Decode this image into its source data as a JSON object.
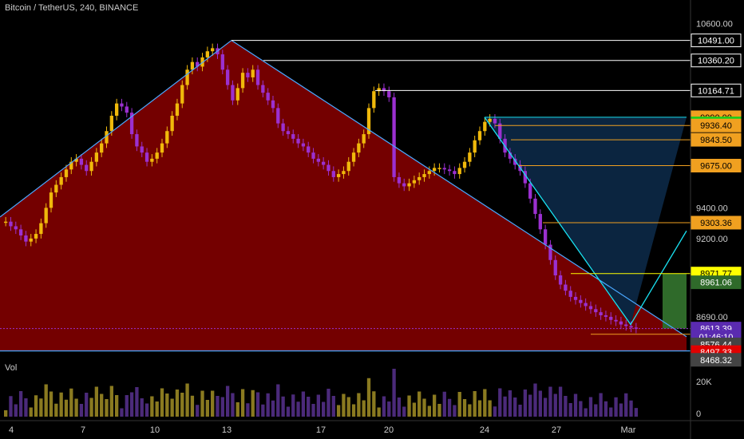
{
  "header": {
    "symbol_title": "Bitcoin / TetherUS, 240, BINANCE"
  },
  "volume_pane": {
    "label": "Vol",
    "ticks": [
      "20K",
      "0"
    ]
  },
  "colors": {
    "background": "#000000",
    "pattern_fill": "#7a0000",
    "triangle_fill": "#0b2540",
    "trendline": "#4aa8ff",
    "cyan_line": "#19e0f0",
    "candle_up": "#f0b90b",
    "candle_down": "#9b30d0",
    "volume_up": "#8a7a20",
    "volume_down": "#4b2a7a",
    "target_box": "#2f6a2a"
  },
  "chart_data": {
    "type": "candlestick",
    "y_axis_ticks": [
      10600.0,
      9400.0,
      9200.0,
      8690.0
    ],
    "x_axis_ticks": [
      "4",
      "7",
      "10",
      "13",
      "17",
      "20",
      "24",
      "27",
      "Mar"
    ],
    "price_labels": [
      {
        "value": "10491.00",
        "style": "white"
      },
      {
        "value": "10360.20",
        "style": "white"
      },
      {
        "value": "10164.71",
        "style": "white"
      },
      {
        "value": "9990.00",
        "style": "orange"
      },
      {
        "value": "9949.89",
        "style": "green"
      },
      {
        "value": "9936.40",
        "style": "orange"
      },
      {
        "value": "9843.50",
        "style": "orange"
      },
      {
        "value": "9675.00",
        "style": "orange"
      },
      {
        "value": "9303.36",
        "style": "orange"
      },
      {
        "value": "8971.77",
        "style": "yellow"
      },
      {
        "value": "8961.06",
        "style": "greenbox"
      },
      {
        "value": "8613.39",
        "style": "purple"
      },
      {
        "value": "01:46:10",
        "style": "purple"
      },
      {
        "value": "8576.44",
        "style": "gray"
      },
      {
        "value": "8497.33",
        "style": "red"
      },
      {
        "value": "8468.32",
        "style": "gray"
      }
    ],
    "price_scale": {
      "min": 8440,
      "max": 10650
    },
    "closes": [
      9310,
      9280,
      9260,
      9220,
      9180,
      9200,
      9230,
      9300,
      9400,
      9500,
      9550,
      9600,
      9650,
      9700,
      9720,
      9680,
      9640,
      9700,
      9760,
      9820,
      9900,
      10000,
      10080,
      10060,
      10020,
      9880,
      9800,
      9760,
      9700,
      9720,
      9760,
      9820,
      9900,
      10000,
      10080,
      10200,
      10300,
      10350,
      10320,
      10380,
      10420,
      10440,
      10400,
      10300,
      10200,
      10100,
      10180,
      10280,
      10250,
      10300,
      10200,
      10150,
      10100,
      10050,
      9950,
      9900,
      9880,
      9850,
      9820,
      9800,
      9760,
      9720,
      9700,
      9680,
      9640,
      9600,
      9620,
      9640,
      9700,
      9760,
      9820,
      9880,
      10050,
      10160,
      10180,
      10160,
      10120,
      9600,
      9560,
      9540,
      9560,
      9580,
      9600,
      9620,
      9640,
      9660,
      9660,
      9650,
      9640,
      9620,
      9660,
      9700,
      9760,
      9840,
      9900,
      9960,
      9980,
      9950,
      9850,
      9760,
      9720,
      9680,
      9640,
      9560,
      9460,
      9360,
      9260,
      9160,
      9060,
      8960,
      8900,
      8860,
      8820,
      8800,
      8780,
      8760,
      8740,
      8720,
      8700,
      8690,
      8670,
      8660,
      8640,
      8630,
      8620,
      8613
    ]
  }
}
